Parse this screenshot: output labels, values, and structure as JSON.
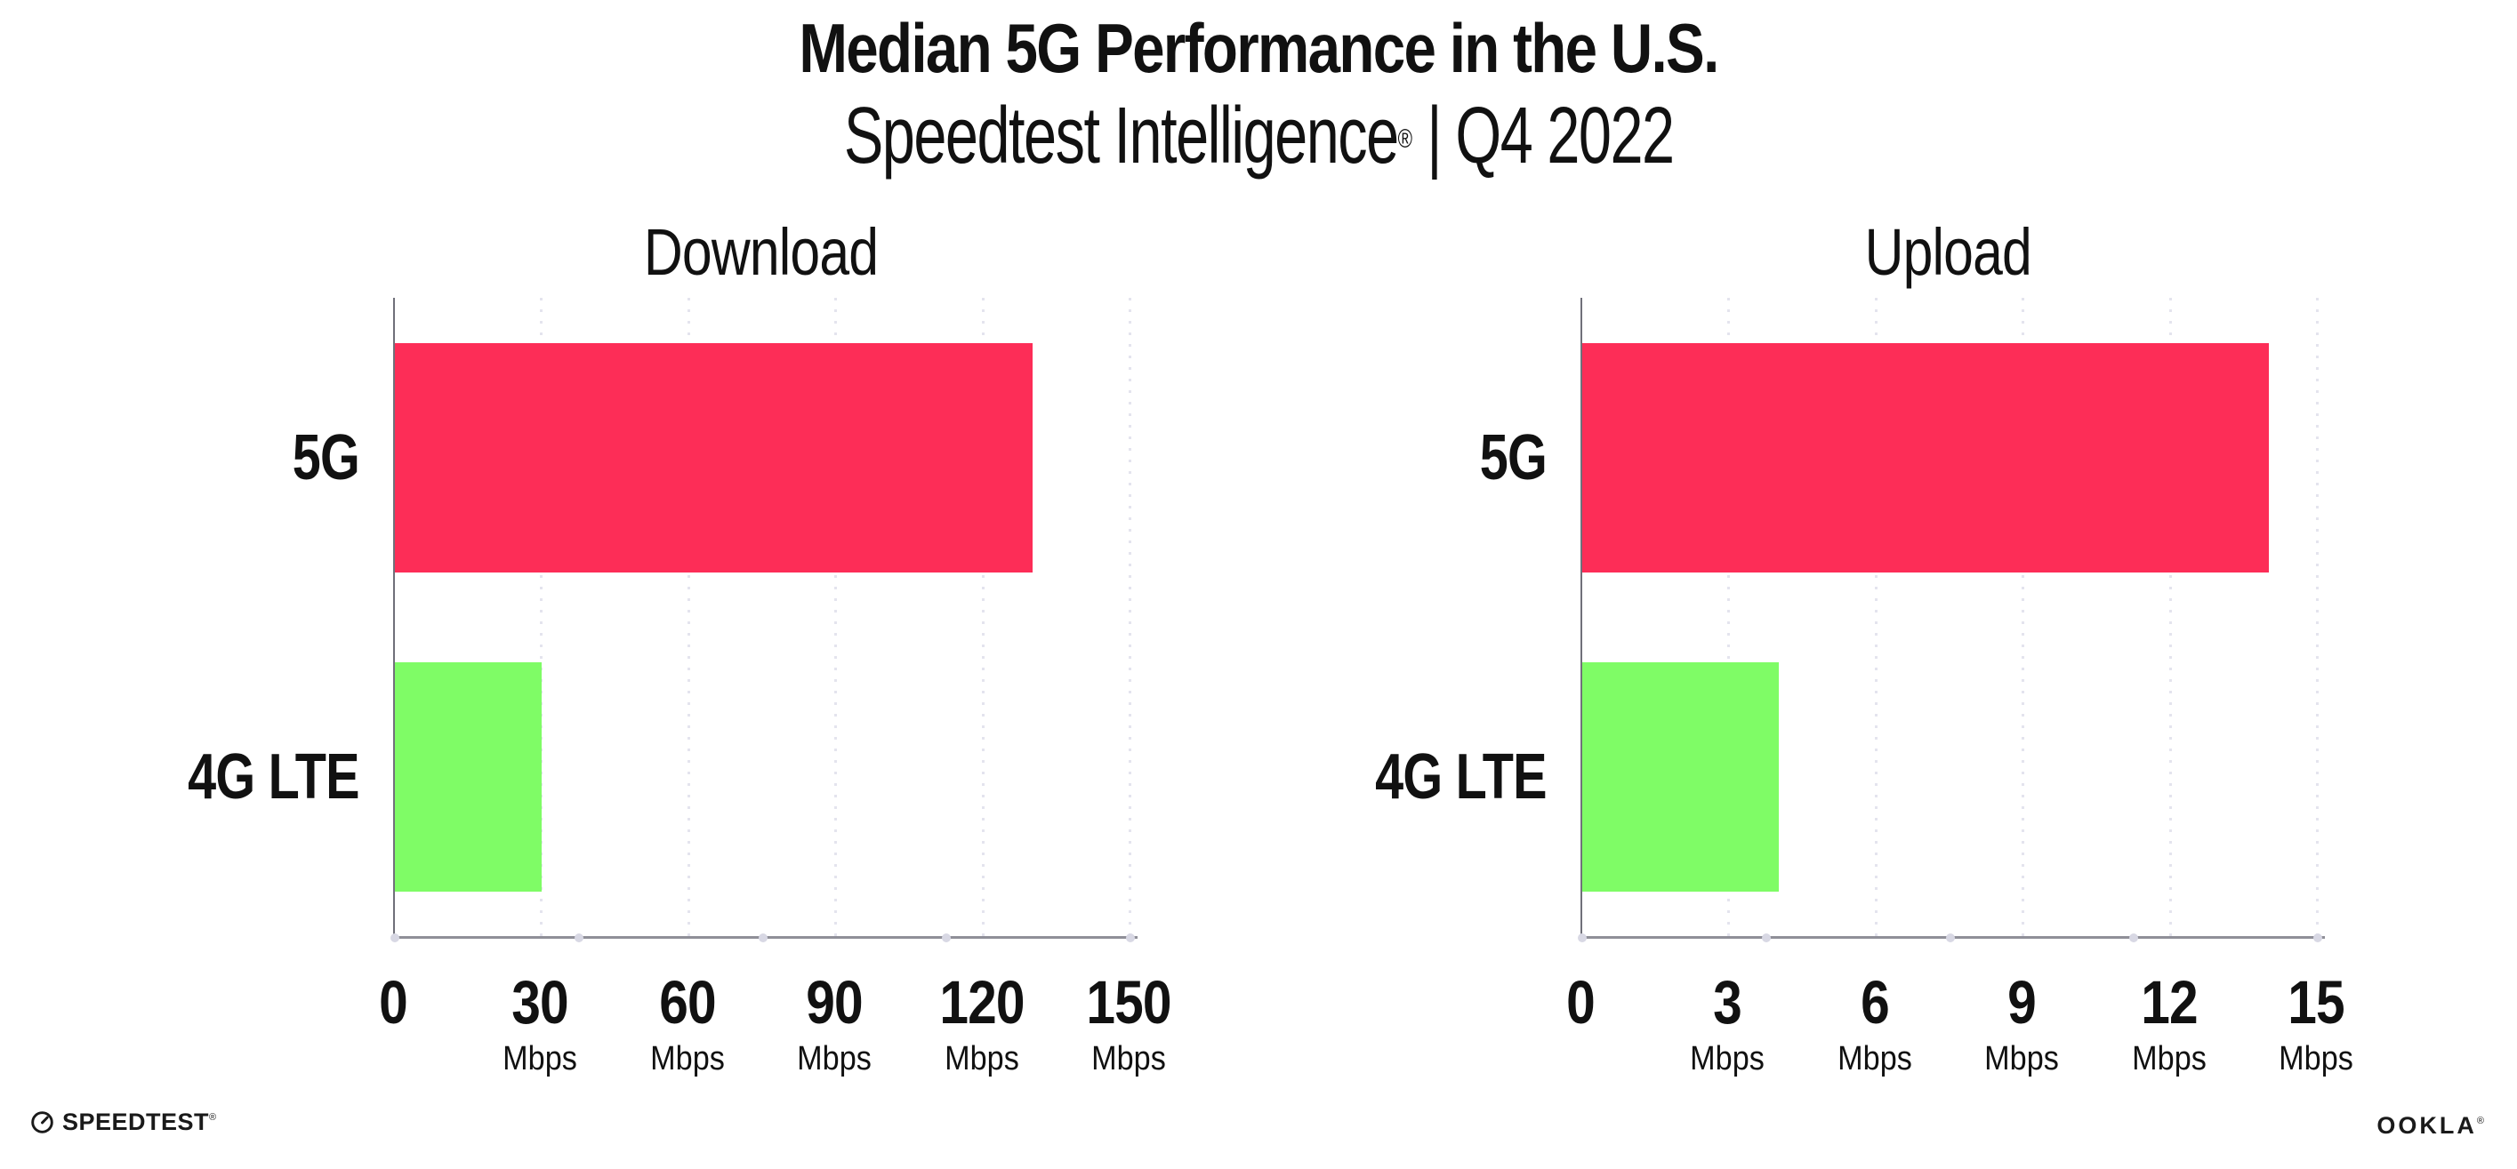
{
  "header": {
    "title": "Median 5G Performance in the U.S.",
    "subtitle_brand": "Speedtest Intelligence",
    "subtitle_reg": "®",
    "subtitle_sep": "|",
    "subtitle_period": "Q4 2022"
  },
  "footer": {
    "speedtest_label": "SPEEDTEST",
    "speedtest_reg": "®",
    "ookla_label": "OOKLA",
    "ookla_reg": "®"
  },
  "colors": {
    "bar_5g": "#FD2D57",
    "bar_4g_lte": "#7FFC66",
    "gridline": "#E4E4EE",
    "y_axis_line": "#70707A",
    "baseline": "#8F8F98",
    "baseline_dot": "#D8D8E4",
    "text": "#111111"
  },
  "chart_data": [
    {
      "type": "bar",
      "orientation": "horizontal",
      "title": "Download",
      "categories": [
        "5G",
        "4G LTE"
      ],
      "values": [
        130,
        30
      ],
      "unit": "Mbps",
      "xlabel": "",
      "ylabel": "",
      "xlim": [
        0,
        150
      ],
      "ticks": [
        0,
        30,
        60,
        90,
        120,
        150
      ],
      "bar_colors": [
        "#FD2D57",
        "#7FFC66"
      ],
      "grid": "dotted-vertical",
      "legend": "none"
    },
    {
      "type": "bar",
      "orientation": "horizontal",
      "title": "Upload",
      "categories": [
        "5G",
        "4G LTE"
      ],
      "values": [
        14,
        4
      ],
      "unit": "Mbps",
      "xlabel": "",
      "ylabel": "",
      "xlim": [
        0,
        15
      ],
      "ticks": [
        0,
        3,
        6,
        9,
        12,
        15
      ],
      "bar_colors": [
        "#FD2D57",
        "#7FFC66"
      ],
      "grid": "dotted-vertical",
      "legend": "none"
    }
  ]
}
